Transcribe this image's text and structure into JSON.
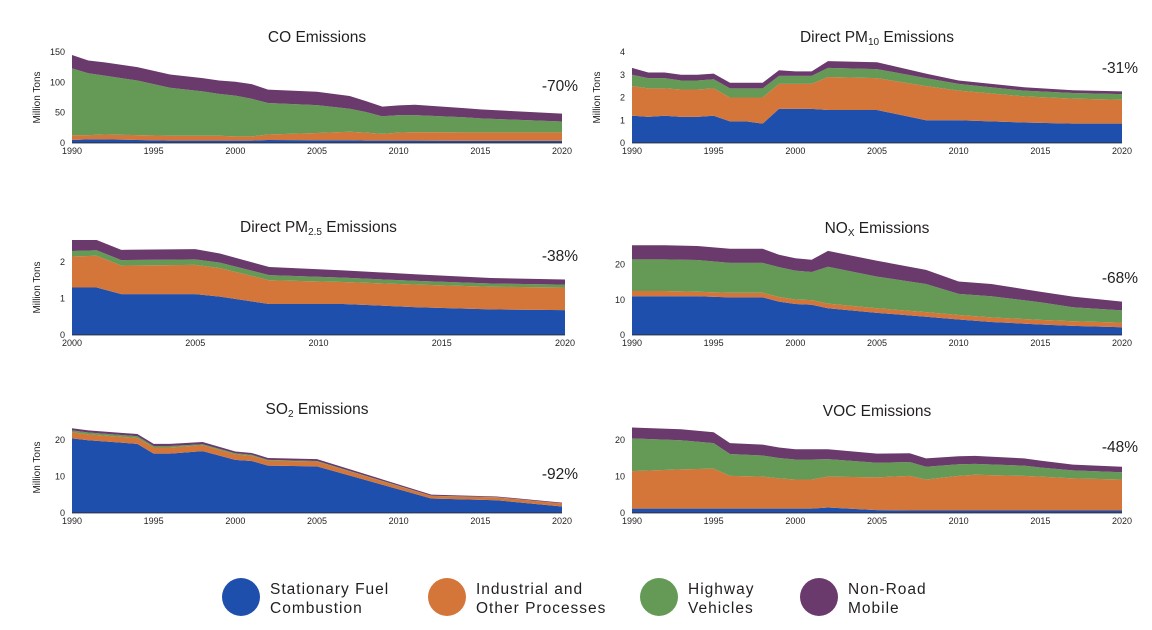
{
  "colors": {
    "stationary": "#1f4fad",
    "industrial": "#d4763a",
    "highway": "#659a56",
    "nonroad": "#6a3a6c"
  },
  "legend": [
    {
      "key": "stationary",
      "line1": "Stationary Fuel",
      "line2": "Combustion"
    },
    {
      "key": "industrial",
      "line1": "Industrial and",
      "line2": "Other Processes"
    },
    {
      "key": "highway",
      "line1": "Highway",
      "line2": "Vehicles"
    },
    {
      "key": "nonroad",
      "line1": "Non-Road",
      "line2": "Mobile"
    }
  ],
  "chart_data": [
    {
      "type": "area",
      "stacked": true,
      "title": "CO Emissions",
      "title_main": "CO Emissions",
      "ylabel": "Million Tons",
      "change": "-70%",
      "xlim": [
        1990,
        2020
      ],
      "ylim": [
        0,
        150
      ],
      "xticks": [
        1990,
        1995,
        2000,
        2005,
        2010,
        2015,
        2020
      ],
      "yticks": [
        0,
        50,
        100,
        150
      ],
      "x": [
        1990,
        1991,
        1992,
        1994,
        1996,
        1998,
        1999,
        2000,
        2001,
        2002,
        2005,
        2007,
        2008,
        2009,
        2010,
        2011,
        2014,
        2015,
        2017,
        2020
      ],
      "series": [
        {
          "name": "Stationary Fuel Combustion",
          "key": "stationary",
          "values": [
            5,
            6,
            6,
            5,
            4,
            4,
            4,
            4,
            4,
            5,
            4.5,
            4.5,
            4,
            4,
            4,
            4,
            3.5,
            3.5,
            3.5,
            3.5
          ]
        },
        {
          "name": "Industrial and Other Processes",
          "key": "industrial",
          "values": [
            8,
            7,
            8,
            8,
            8,
            8,
            8,
            7,
            7,
            9,
            12,
            14,
            13,
            11,
            13,
            14,
            14,
            14,
            14,
            14
          ]
        },
        {
          "name": "Highway Vehicles",
          "key": "highway",
          "values": [
            110,
            102,
            97,
            90,
            79,
            73,
            69,
            67,
            62,
            52,
            46,
            38,
            34,
            29,
            29,
            28,
            25,
            23,
            21,
            18
          ]
        },
        {
          "name": "Non-Road Mobile",
          "key": "nonroad",
          "values": [
            22,
            21,
            22,
            22,
            22,
            22,
            22,
            23,
            24,
            22,
            22,
            21,
            18,
            16,
            16,
            17,
            15,
            15,
            14,
            13
          ]
        }
      ]
    },
    {
      "type": "area",
      "stacked": true,
      "title": "Direct PM10 Emissions",
      "title_main": "Direct PM",
      "title_sub": "10",
      "title_rest": " Emissions",
      "ylabel": "Million Tons",
      "change": "-31%",
      "xlim": [
        1990,
        2020
      ],
      "ylim": [
        0,
        4
      ],
      "xticks": [
        1990,
        1995,
        2000,
        2005,
        2010,
        2015,
        2020
      ],
      "yticks": [
        0,
        1,
        2,
        3,
        4
      ],
      "x": [
        1990,
        1991,
        1992,
        1993,
        1994,
        1995,
        1996,
        1997,
        1998,
        1999,
        2000,
        2001,
        2002,
        2005,
        2008,
        2010,
        2014,
        2017,
        2020
      ],
      "series": [
        {
          "name": "Stationary Fuel Combustion",
          "key": "stationary",
          "values": [
            1.2,
            1.15,
            1.2,
            1.15,
            1.15,
            1.2,
            0.95,
            0.95,
            0.85,
            1.5,
            1.5,
            1.5,
            1.45,
            1.45,
            1.0,
            1.0,
            0.9,
            0.85,
            0.85
          ]
        },
        {
          "name": "Industrial and Other Processes",
          "key": "industrial",
          "values": [
            1.3,
            1.25,
            1.2,
            1.2,
            1.2,
            1.2,
            1.05,
            1.05,
            1.15,
            1.1,
            1.1,
            1.1,
            1.45,
            1.4,
            1.5,
            1.3,
            1.15,
            1.1,
            1.05
          ]
        },
        {
          "name": "Highway Vehicles",
          "key": "highway",
          "values": [
            0.5,
            0.45,
            0.45,
            0.4,
            0.4,
            0.4,
            0.4,
            0.4,
            0.4,
            0.35,
            0.35,
            0.35,
            0.4,
            0.4,
            0.35,
            0.3,
            0.25,
            0.25,
            0.25
          ]
        },
        {
          "name": "Non-Road Mobile",
          "key": "nonroad",
          "values": [
            0.3,
            0.25,
            0.25,
            0.25,
            0.25,
            0.25,
            0.25,
            0.25,
            0.25,
            0.25,
            0.2,
            0.2,
            0.3,
            0.3,
            0.2,
            0.15,
            0.15,
            0.12,
            0.12
          ]
        }
      ]
    },
    {
      "type": "area",
      "stacked": true,
      "title": "Direct PM2.5 Emissions",
      "title_main": "Direct PM",
      "title_sub": "2.5",
      "title_rest": " Emissions",
      "ylabel": "Million Tons",
      "change": "-38%",
      "xlim": [
        2000,
        2020
      ],
      "ylim": [
        0,
        2.6
      ],
      "xticks": [
        2000,
        2005,
        2010,
        2015,
        2020
      ],
      "yticks": [
        0,
        1,
        2
      ],
      "x": [
        2000,
        2001,
        2002,
        2005,
        2006,
        2008,
        2011,
        2014,
        2017,
        2020
      ],
      "series": [
        {
          "name": "Stationary Fuel Combustion",
          "key": "stationary",
          "values": [
            1.3,
            1.3,
            1.12,
            1.12,
            1.05,
            0.85,
            0.85,
            0.76,
            0.7,
            0.68
          ]
        },
        {
          "name": "Industrial and Other Processes",
          "key": "industrial",
          "values": [
            0.85,
            0.87,
            0.78,
            0.8,
            0.78,
            0.65,
            0.6,
            0.62,
            0.62,
            0.62
          ]
        },
        {
          "name": "Highway Vehicles",
          "key": "highway",
          "values": [
            0.15,
            0.15,
            0.15,
            0.15,
            0.15,
            0.14,
            0.12,
            0.1,
            0.09,
            0.08
          ]
        },
        {
          "name": "Non-Road Mobile",
          "key": "nonroad",
          "values": [
            0.3,
            0.28,
            0.28,
            0.28,
            0.25,
            0.22,
            0.2,
            0.18,
            0.15,
            0.14
          ]
        }
      ]
    },
    {
      "type": "area",
      "stacked": true,
      "title": "NOX Emissions",
      "title_main": "NO",
      "title_sub": "X",
      "title_rest": " Emissions",
      "ylabel": "",
      "change": "-68%",
      "xlim": [
        1990,
        2020
      ],
      "ylim": [
        0,
        27
      ],
      "xticks": [
        1990,
        1995,
        2000,
        2005,
        2010,
        2015,
        2020
      ],
      "yticks": [
        0,
        10,
        20
      ],
      "x": [
        1990,
        1992,
        1994,
        1996,
        1998,
        1999,
        2000,
        2001,
        2002,
        2005,
        2008,
        2010,
        2012,
        2015,
        2017,
        2020
      ],
      "series": [
        {
          "name": "Stationary Fuel Combustion",
          "key": "stationary",
          "values": [
            11,
            11,
            11,
            10.7,
            10.7,
            9.5,
            8.8,
            8.6,
            7.6,
            6.3,
            5.2,
            4.4,
            3.7,
            3.0,
            2.6,
            2.2
          ]
        },
        {
          "name": "Industrial and Other Processes",
          "key": "industrial",
          "values": [
            1.5,
            1.5,
            1.3,
            1.3,
            1.3,
            1.3,
            1.3,
            1.3,
            1.3,
            1.3,
            1.3,
            1.3,
            1.3,
            1.3,
            1.3,
            1.3
          ]
        },
        {
          "name": "Highway Vehicles",
          "key": "highway",
          "values": [
            9,
            9,
            9,
            8.5,
            8.5,
            8.5,
            8.2,
            8,
            10.5,
            9,
            8,
            6,
            6,
            5,
            4,
            3.5
          ]
        },
        {
          "name": "Non-Road Mobile",
          "key": "nonroad",
          "values": [
            4,
            4,
            4,
            4,
            4,
            3.5,
            3.5,
            3.5,
            4.5,
            4.5,
            4,
            3.5,
            3.5,
            3,
            3,
            2.5
          ]
        }
      ]
    },
    {
      "type": "area",
      "stacked": true,
      "title": "SO2 Emissions",
      "title_main": "SO",
      "title_sub": "2",
      "title_rest": " Emissions",
      "ylabel": "Million Tons",
      "change": "-92%",
      "xlim": [
        1990,
        2020
      ],
      "ylim": [
        0,
        25
      ],
      "xticks": [
        1990,
        1995,
        2000,
        2005,
        2010,
        2015,
        2020
      ],
      "yticks": [
        0,
        10,
        20
      ],
      "x": [
        1990,
        1991,
        1994,
        1995,
        1996,
        1998,
        2000,
        2001,
        2002,
        2005,
        2012,
        2016,
        2020
      ],
      "series": [
        {
          "name": "Stationary Fuel Combustion",
          "key": "stationary",
          "values": [
            20.5,
            20,
            19,
            16.3,
            16.3,
            17,
            14.6,
            14.3,
            13,
            12.8,
            4.0,
            3.5,
            1.8
          ]
        },
        {
          "name": "Industrial and Other Processes",
          "key": "industrial",
          "values": [
            1.7,
            1.6,
            1.6,
            1.7,
            1.7,
            1.6,
            1.5,
            1.4,
            1.4,
            1.3,
            0.7,
            0.8,
            0.8
          ]
        },
        {
          "name": "Highway Vehicles",
          "key": "highway",
          "values": [
            0.5,
            0.5,
            0.5,
            0.4,
            0.4,
            0.3,
            0.3,
            0.3,
            0.2,
            0.2,
            0.05,
            0.05,
            0.05
          ]
        },
        {
          "name": "Non-Road Mobile",
          "key": "nonroad",
          "values": [
            0.6,
            0.6,
            0.6,
            0.6,
            0.6,
            0.6,
            0.5,
            0.5,
            0.5,
            0.5,
            0.3,
            0.2,
            0.2
          ]
        }
      ]
    },
    {
      "type": "area",
      "stacked": true,
      "title": "VOC Emissions",
      "title_main": "VOC Emissions",
      "ylabel": "",
      "change": "-48%",
      "xlim": [
        1990,
        2020
      ],
      "ylim": [
        0,
        25
      ],
      "xticks": [
        1990,
        1995,
        2000,
        2005,
        2010,
        2015,
        2020
      ],
      "yticks": [
        0,
        10,
        20
      ],
      "x": [
        1990,
        1993,
        1995,
        1996,
        1998,
        1999,
        2000,
        2001,
        2002,
        2005,
        2007,
        2008,
        2010,
        2011,
        2014,
        2015,
        2017,
        2020
      ],
      "series": [
        {
          "name": "Stationary Fuel Combustion",
          "key": "stationary",
          "values": [
            1.2,
            1.2,
            1.2,
            1.2,
            1.2,
            1.2,
            1.2,
            1.2,
            1.5,
            0.8,
            0.7,
            0.7,
            0.7,
            0.7,
            0.7,
            0.7,
            0.7,
            0.7
          ]
        },
        {
          "name": "Industrial and Other Processes",
          "key": "industrial",
          "values": [
            10.3,
            10.8,
            11,
            9,
            8.8,
            8.3,
            8,
            8,
            8.5,
            9,
            9.5,
            8.5,
            9.5,
            9.8,
            9.5,
            9.3,
            8.8,
            8.5
          ]
        },
        {
          "name": "Highway Vehicles",
          "key": "highway",
          "values": [
            9,
            8,
            7,
            6,
            5.8,
            5.6,
            5.5,
            5.5,
            4.8,
            4,
            3.8,
            3.5,
            3.2,
            3,
            2.8,
            2.5,
            2.2,
            2
          ]
        },
        {
          "name": "Non-Road Mobile",
          "key": "nonroad",
          "values": [
            3,
            3,
            3,
            3,
            3,
            2.9,
            2.8,
            2.8,
            2.7,
            2.5,
            2.4,
            2.3,
            2.2,
            2.2,
            2.0,
            1.9,
            1.6,
            1.5
          ]
        }
      ]
    }
  ]
}
